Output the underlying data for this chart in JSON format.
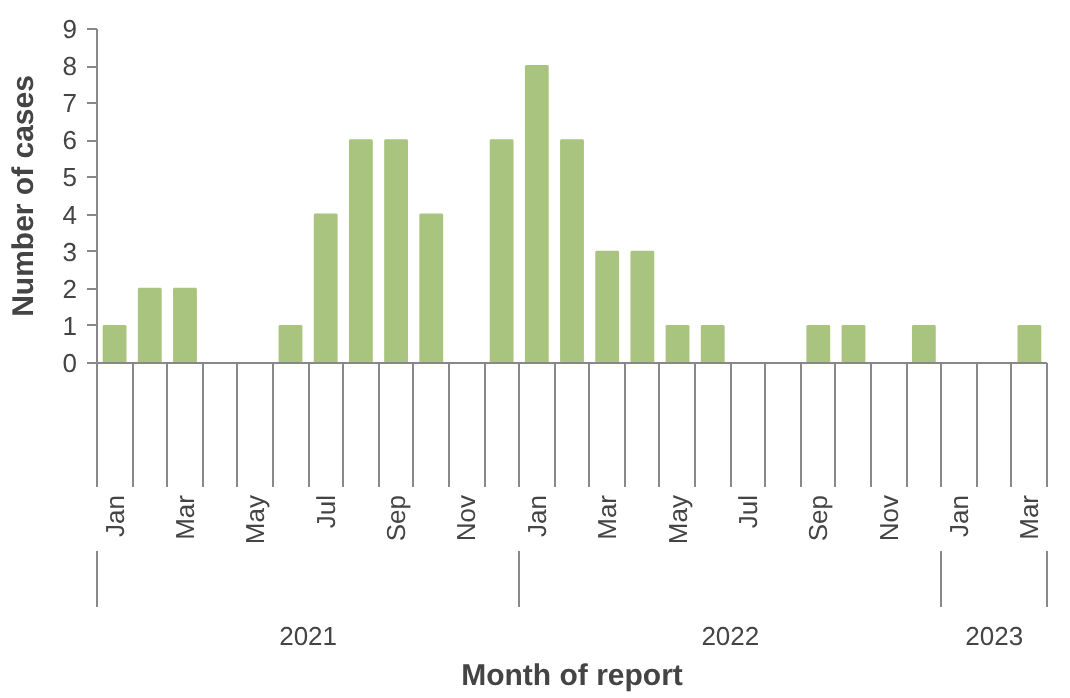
{
  "chart_data": {
    "type": "bar",
    "xlabel": "Month of report",
    "ylabel": "Number of cases",
    "categories": [
      "Jan",
      null,
      "Mar",
      null,
      "May",
      null,
      "Jul",
      null,
      "Sep",
      null,
      "Nov",
      null,
      "Jan",
      null,
      "Mar",
      null,
      "May",
      null,
      "Jul",
      null,
      "Sep",
      null,
      "Nov",
      null,
      "Jan",
      null,
      "Mar"
    ],
    "values": [
      1,
      2,
      2,
      0,
      0,
      1,
      4,
      6,
      6,
      4,
      0,
      6,
      8,
      6,
      3,
      3,
      1,
      1,
      0,
      0,
      1,
      1,
      0,
      1,
      0,
      0,
      1
    ],
    "color": "#a9c47f",
    "ylim": [
      0,
      9
    ],
    "yticks": [
      0,
      1,
      2,
      3,
      4,
      5,
      6,
      7,
      8,
      9
    ],
    "grid": false,
    "annotations": [
      "2021",
      "2022",
      "2023"
    ]
  }
}
